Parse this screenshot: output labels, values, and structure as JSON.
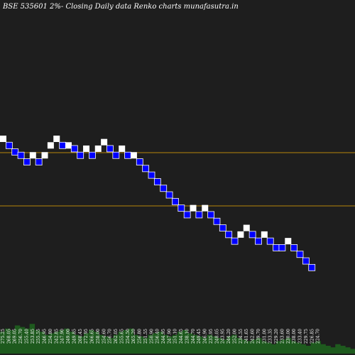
{
  "chart_data": {
    "type": "renko",
    "title": "BSE 535601 2%-  Closing Daily data  Renko  charts munafasutra.in",
    "colors": {
      "background": "#1e1e1e",
      "up_brick": "#ffffff",
      "down_brick": "#0000ff",
      "down_brick_border": "#ffffff",
      "reference_line": "#b8860b",
      "volume": "#1e5a1e"
    },
    "reference_lines": [
      {
        "value": 1.0
      },
      {
        "value": 0.0
      }
    ],
    "bricks": [
      {
        "dir": "up",
        "level": 0
      },
      {
        "dir": "down",
        "level": -1
      },
      {
        "dir": "down",
        "level": -2
      },
      {
        "dir": "down",
        "level": -2.5
      },
      {
        "dir": "down",
        "level": -3.5
      },
      {
        "dir": "up",
        "level": -2.5
      },
      {
        "dir": "down",
        "level": -3.5
      },
      {
        "dir": "up",
        "level": -2.5
      },
      {
        "dir": "up",
        "level": -1
      },
      {
        "dir": "up",
        "level": 0
      },
      {
        "dir": "down",
        "level": -1
      },
      {
        "dir": "up",
        "level": -1
      },
      {
        "dir": "down",
        "level": -1.5
      },
      {
        "dir": "down",
        "level": -2.5
      },
      {
        "dir": "up",
        "level": -1.5
      },
      {
        "dir": "down",
        "level": -2.5
      },
      {
        "dir": "up",
        "level": -1.5
      },
      {
        "dir": "up",
        "level": -0.5
      },
      {
        "dir": "down",
        "level": -1.5
      },
      {
        "dir": "down",
        "level": -2.5
      },
      {
        "dir": "up",
        "level": -1.5
      },
      {
        "dir": "down",
        "level": -2.5
      },
      {
        "dir": "up",
        "level": -2.5
      },
      {
        "dir": "down",
        "level": -3.5
      },
      {
        "dir": "down",
        "level": -4.5
      },
      {
        "dir": "down",
        "level": -5.5
      },
      {
        "dir": "down",
        "level": -6.5
      },
      {
        "dir": "down",
        "level": -7.5
      },
      {
        "dir": "down",
        "level": -8.5
      },
      {
        "dir": "down",
        "level": -9.5
      },
      {
        "dir": "down",
        "level": -10.5
      },
      {
        "dir": "down",
        "level": -11.5
      },
      {
        "dir": "up",
        "level": -10.5
      },
      {
        "dir": "down",
        "level": -11.5
      },
      {
        "dir": "up",
        "level": -10.5
      },
      {
        "dir": "down",
        "level": -11.5
      },
      {
        "dir": "down",
        "level": -12.5
      },
      {
        "dir": "down",
        "level": -13.5
      },
      {
        "dir": "down",
        "level": -14.5
      },
      {
        "dir": "down",
        "level": -15.5
      },
      {
        "dir": "up",
        "level": -14.5
      },
      {
        "dir": "up",
        "level": -13.5
      },
      {
        "dir": "down",
        "level": -14.5
      },
      {
        "dir": "down",
        "level": -15.5
      },
      {
        "dir": "up",
        "level": -14.5
      },
      {
        "dir": "down",
        "level": -15.5
      },
      {
        "dir": "down",
        "level": -16.5
      },
      {
        "dir": "down",
        "level": -16.5
      },
      {
        "dir": "up",
        "level": -15.5
      },
      {
        "dir": "down",
        "level": -16.5
      },
      {
        "dir": "down",
        "level": -17.5
      },
      {
        "dir": "down",
        "level": -18.5
      },
      {
        "dir": "down",
        "level": -19.5
      }
    ],
    "price_labels": [
      "275.25",
      "268.05",
      "269.05",
      "256.70",
      "255.40",
      "253.85",
      "255.55",
      "246.95",
      "254.80",
      "242.85",
      "247.90",
      "249.00",
      "249.85",
      "268.45",
      "272.95",
      "266.65",
      "258.00",
      "254.60",
      "256.70",
      "262.05",
      "255.65",
      "254.50",
      "265.20",
      "256.80",
      "251.55",
      "250.90",
      "256.40",
      "244.95",
      "247.90",
      "251.10",
      "244.65",
      "238.10",
      "244.70",
      "249.45",
      "246.90",
      "235.95",
      "248.05",
      "243.95",
      "244.20",
      "252.00",
      "234.55",
      "241.65",
      "242.60",
      "239.70",
      "231.00",
      "233.35",
      "229.20",
      "233.60",
      "230.00",
      "238.00",
      "233.40",
      "229.75",
      "226.85",
      "224.70"
    ],
    "volume": [
      14,
      16,
      15,
      18,
      17,
      16,
      19,
      15,
      14,
      12,
      13,
      14,
      15,
      16,
      14,
      12,
      11,
      13,
      15,
      14,
      12,
      11,
      10,
      12,
      14,
      15,
      16,
      12,
      11,
      10,
      12,
      13,
      14,
      12,
      11,
      12,
      14,
      15,
      13,
      12,
      11,
      10,
      12,
      11,
      10,
      9,
      11,
      12,
      10,
      9,
      8,
      9,
      10,
      8,
      7,
      6,
      8,
      9,
      10,
      8,
      7,
      6,
      5,
      7,
      8,
      6,
      5,
      4,
      6,
      5,
      4,
      3
    ]
  }
}
